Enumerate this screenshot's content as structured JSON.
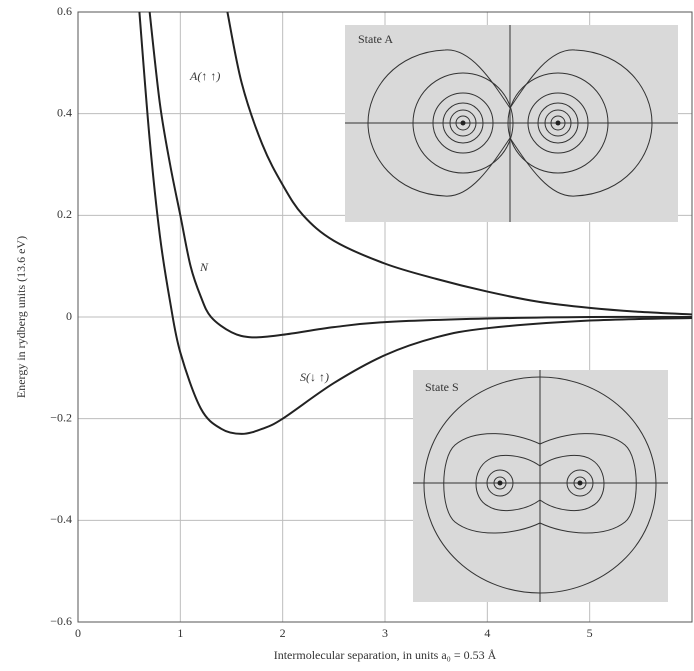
{
  "chart_data": {
    "type": "line",
    "y_label": "Energy in rydberg units (13.6 eV)",
    "x_label": "Intermolecular separation, in units a₀ = 0.53 Å",
    "xlim": [
      0,
      6
    ],
    "xticks": [
      0,
      1,
      2,
      3,
      4,
      5
    ],
    "ylim": [
      -0.6,
      0.6
    ],
    "yticks": [
      {
        "value": -0.6,
        "label": "−0.6"
      },
      {
        "value": -0.4,
        "label": "−0.4"
      },
      {
        "value": -0.2,
        "label": "−0.2"
      },
      0,
      0.2,
      0.4,
      0.6
    ],
    "grid": true,
    "series": [
      {
        "name": "A(↑ ↑)",
        "color": "#222222",
        "x": [
          1.46,
          1.6,
          1.8,
          2.0,
          2.2,
          2.5,
          3.0,
          3.5,
          4.0,
          4.5,
          5.0,
          5.5,
          6.0
        ],
        "values": [
          0.6,
          0.46,
          0.34,
          0.26,
          0.2,
          0.15,
          0.105,
          0.075,
          0.05,
          0.03,
          0.018,
          0.01,
          0.005
        ]
      },
      {
        "name": "N",
        "color": "#222222",
        "x": [
          0.7,
          0.8,
          0.9,
          1.0,
          1.1,
          1.2,
          1.3,
          1.5,
          1.7,
          2.0,
          2.5,
          3.0,
          4.0,
          5.0,
          6.0
        ],
        "values": [
          0.6,
          0.42,
          0.3,
          0.2,
          0.1,
          0.04,
          0.0,
          -0.03,
          -0.04,
          -0.035,
          -0.02,
          -0.01,
          -0.003,
          0,
          0
        ]
      },
      {
        "name": "S(↓ ↑)",
        "color": "#222222",
        "x": [
          0.6,
          0.7,
          0.8,
          0.9,
          1.0,
          1.2,
          1.4,
          1.6,
          1.8,
          2.0,
          2.5,
          3.0,
          3.5,
          4.0,
          5.0,
          6.0
        ],
        "values": [
          0.6,
          0.35,
          0.16,
          0.03,
          -0.07,
          -0.18,
          -0.22,
          -0.23,
          -0.22,
          -0.2,
          -0.13,
          -0.075,
          -0.04,
          -0.022,
          -0.007,
          -0.002
        ]
      }
    ],
    "insets": [
      "State A",
      "State S"
    ]
  }
}
